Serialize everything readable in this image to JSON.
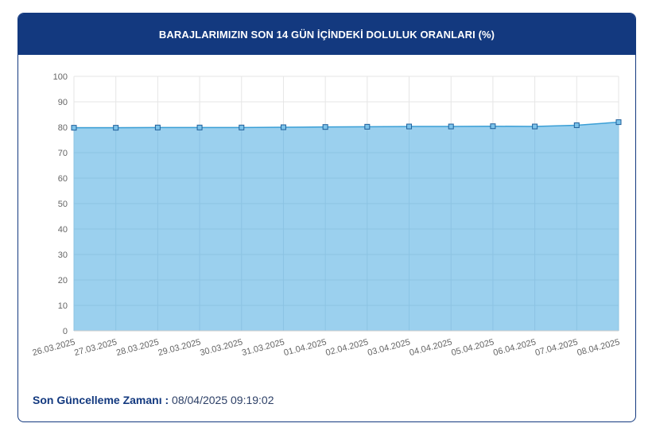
{
  "header": {
    "title": "BARAJLARIMIZIN SON 14 GÜN İÇİNDEKİ DOLULUK ORANLARI (%)"
  },
  "footer": {
    "label": "Son Güncelleme Zamanı :",
    "value": "08/04/2025 09:19:02"
  },
  "colors": {
    "header_bg": "#13397f",
    "area_fill": "#9bd0ee",
    "line": "#3a9fd6",
    "marker_fill": "#7cc3ea",
    "marker_stroke": "#1f5f9a"
  },
  "chart_data": {
    "type": "area",
    "title": "BARAJLARIMIZIN SON 14 GÜN İÇİNDEKİ DOLULUK ORANLARI (%)",
    "xlabel": "",
    "ylabel": "",
    "ylim": [
      0,
      100
    ],
    "yticks": [
      0,
      10,
      20,
      30,
      40,
      50,
      60,
      70,
      80,
      90,
      100
    ],
    "grid": true,
    "categories": [
      "26.03.2025",
      "27.03.2025",
      "28.03.2025",
      "29.03.2025",
      "30.03.2025",
      "31.03.2025",
      "01.04.2025",
      "02.04.2025",
      "03.04.2025",
      "04.04.2025",
      "05.04.2025",
      "06.04.2025",
      "07.04.2025",
      "08.04.2025"
    ],
    "series": [
      {
        "values": [
          79.8,
          79.8,
          79.9,
          79.9,
          79.9,
          80.0,
          80.1,
          80.2,
          80.3,
          80.3,
          80.4,
          80.3,
          80.8,
          82.0
        ]
      }
    ]
  }
}
